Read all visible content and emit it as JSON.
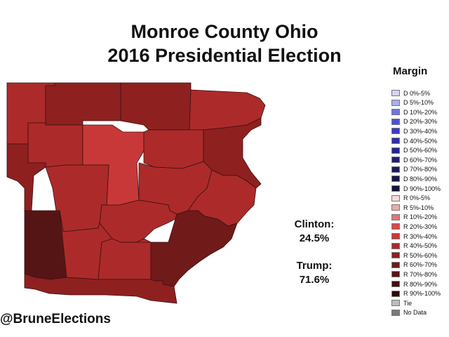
{
  "title": {
    "line1": "Monroe County Ohio",
    "line2": "2016 Presidential Election"
  },
  "results": {
    "clinton_label": "Clinton:",
    "clinton_pct": "24.5%",
    "trump_label": "Trump:",
    "trump_pct": "71.6%"
  },
  "legend": {
    "title": "Margin",
    "items": [
      {
        "label": "D 0%-5%",
        "color": "#d4d4f2"
      },
      {
        "label": "D 5%-10%",
        "color": "#aab0ee"
      },
      {
        "label": "D 10%-20%",
        "color": "#7074e6"
      },
      {
        "label": "D 20%-30%",
        "color": "#4e4ede"
      },
      {
        "label": "D 30%-40%",
        "color": "#3a3ac8"
      },
      {
        "label": "D 40%-50%",
        "color": "#2e2eaa"
      },
      {
        "label": "D 50%-60%",
        "color": "#252590"
      },
      {
        "label": "D 60%-70%",
        "color": "#1f1f78"
      },
      {
        "label": "D 70%-80%",
        "color": "#1a1a5e"
      },
      {
        "label": "D 80%-90%",
        "color": "#161648"
      },
      {
        "label": "D 90%-100%",
        "color": "#121236"
      },
      {
        "label": "R 0%-5%",
        "color": "#f6d8d8"
      },
      {
        "label": "R 5%-10%",
        "color": "#eeaaaa"
      },
      {
        "label": "R 10%-20%",
        "color": "#e57474"
      },
      {
        "label": "R 20%-30%",
        "color": "#d94848"
      },
      {
        "label": "R 30%-40%",
        "color": "#c93838"
      },
      {
        "label": "R 40%-50%",
        "color": "#ad2a2a"
      },
      {
        "label": "R 50%-60%",
        "color": "#8f2020"
      },
      {
        "label": "R 60%-70%",
        "color": "#701a1a"
      },
      {
        "label": "R 70%-80%",
        "color": "#561515"
      },
      {
        "label": "R 80%-90%",
        "color": "#421010"
      },
      {
        "label": "R 90%-100%",
        "color": "#2e0c0c"
      },
      {
        "label": "Tie",
        "color": "#bdbdbd"
      },
      {
        "label": "No Data",
        "color": "#7a7a7a"
      }
    ]
  },
  "map": {
    "townships": [
      {
        "color": "#ad2a2a"
      },
      {
        "color": "#8f2020"
      },
      {
        "color": "#8f2020"
      },
      {
        "color": "#ad2a2a"
      },
      {
        "color": "#ad2a2a"
      },
      {
        "color": "#c93838"
      },
      {
        "color": "#ad2a2a"
      },
      {
        "color": "#8f2020"
      },
      {
        "color": "#8f2020"
      },
      {
        "color": "#ad2a2a"
      },
      {
        "color": "#ad2a2a"
      },
      {
        "color": "#ad2a2a"
      },
      {
        "color": "#ad2a2a"
      },
      {
        "color": "#561515"
      },
      {
        "color": "#ad2a2a"
      },
      {
        "color": "#ad2a2a"
      },
      {
        "color": "#701a1a"
      },
      {
        "color": "#8f2020"
      }
    ]
  },
  "credit": "@BruneElections"
}
